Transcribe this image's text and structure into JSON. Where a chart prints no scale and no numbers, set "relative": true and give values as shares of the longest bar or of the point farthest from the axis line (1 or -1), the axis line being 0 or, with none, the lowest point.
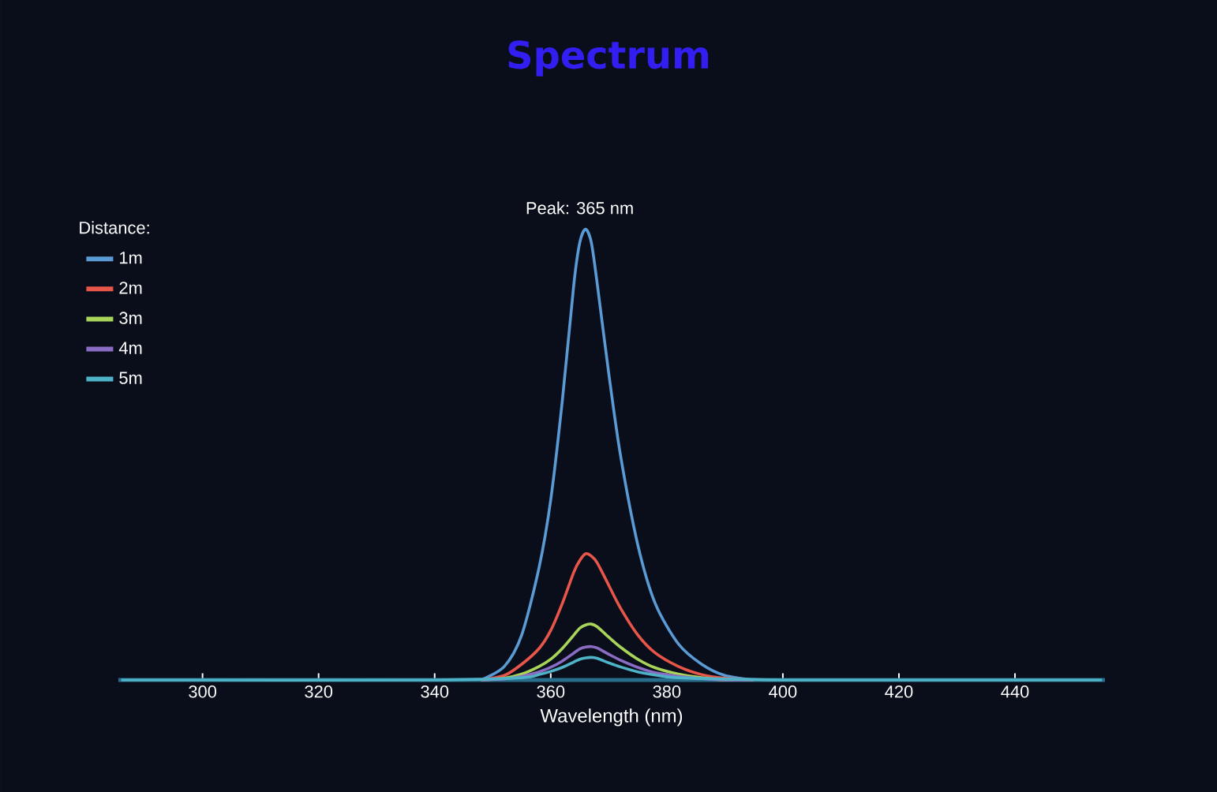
{
  "chart_data": {
    "type": "line",
    "title": "Spectrum",
    "xlabel": "Wavelength (nm)",
    "legend_title": "Distance:",
    "relative": true,
    "legend": "top left",
    "marker": "none",
    "line_style": "solid",
    "grid": false,
    "annotations": [
      {
        "text": "Peak: 365 nm",
        "x": 365,
        "y": 1
      }
    ],
    "xlim": [
      285.5,
      455.5
    ],
    "xticks": [
      300,
      320,
      340,
      360,
      380,
      400,
      420,
      440
    ],
    "x": [
      348,
      352,
      355,
      358,
      360,
      362,
      364,
      365,
      366,
      367,
      368,
      370,
      372,
      375,
      378,
      382,
      386,
      390,
      395
    ],
    "series": [
      {
        "name": "1m",
        "color": "#5b9bd5",
        "values": [
          0,
          0.03,
          0.1,
          0.25,
          0.4,
          0.62,
          0.88,
          0.97,
          1,
          0.97,
          0.88,
          0.68,
          0.5,
          0.3,
          0.17,
          0.08,
          0.035,
          0.01,
          0
        ]
      },
      {
        "name": "2m",
        "color": "#e8564a",
        "values": [
          0,
          0.01,
          0.035,
          0.07,
          0.11,
          0.17,
          0.24,
          0.265,
          0.28,
          0.275,
          0.26,
          0.21,
          0.16,
          0.1,
          0.06,
          0.03,
          0.012,
          0.004,
          0
        ]
      },
      {
        "name": "3m",
        "color": "#a8d45a",
        "values": [
          0,
          0.004,
          0.013,
          0.03,
          0.046,
          0.07,
          0.1,
          0.115,
          0.122,
          0.124,
          0.118,
          0.095,
          0.073,
          0.046,
          0.027,
          0.013,
          0.005,
          0,
          0
        ]
      },
      {
        "name": "4m",
        "color": "#8a6cc4",
        "values": [
          0,
          0.002,
          0.008,
          0.018,
          0.028,
          0.042,
          0.06,
          0.069,
          0.073,
          0.074,
          0.071,
          0.057,
          0.044,
          0.028,
          0.016,
          0.008,
          0.003,
          0,
          0
        ]
      },
      {
        "name": "5m",
        "color": "#4fb3c8",
        "x": [
          286,
          340,
          355,
          358,
          360,
          362,
          364,
          365,
          366,
          367,
          368,
          370,
          372,
          375,
          378,
          382,
          400,
          420,
          455
        ],
        "values": [
          0,
          0,
          0.005,
          0.012,
          0.019,
          0.028,
          0.04,
          0.046,
          0.049,
          0.05,
          0.048,
          0.038,
          0.029,
          0.018,
          0.011,
          0.005,
          0,
          0,
          0
        ]
      }
    ]
  }
}
